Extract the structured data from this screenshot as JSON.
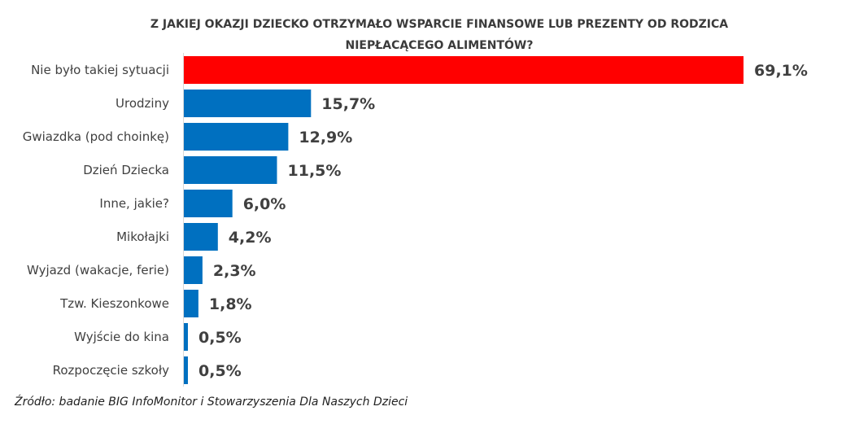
{
  "chart_data": {
    "type": "bar",
    "orientation": "horizontal",
    "title": "Z JAKIEJ OKAZJI DZIECKO OTRZYMAŁO WSPARCIE FINANSOWE LUB PREZENTY OD RODZICA NIEPŁACĄCEGO ALIMENTÓW?",
    "title_lines": [
      "Z JAKIEJ OKAZJI DZIECKO OTRZYMAŁO WSPARCIE FINANSOWE LUB PREZENTY OD RODZICA",
      "NIEPŁACĄCEGO ALIMENTÓW?"
    ],
    "categories": [
      "Nie było takiej sytuacji",
      "Urodziny",
      "Gwiazdka (pod choinkę)",
      "Dzień Dziecka",
      "Inne, jakie?",
      "Mikołajki",
      "Wyjazd (wakacje, ferie)",
      "Tzw. Kieszonkowe",
      "Wyjście do kina",
      "Rozpoczęcie szkoły"
    ],
    "values": [
      69.1,
      15.7,
      12.9,
      11.5,
      6.0,
      4.2,
      2.3,
      1.8,
      0.5,
      0.5
    ],
    "value_labels": [
      "69,1%",
      "15,7%",
      "12,9%",
      "11,5%",
      "6,0%",
      "4,2%",
      "2,3%",
      "1,8%",
      "0,5%",
      "0,5%"
    ],
    "colors": [
      "#ff0000",
      "#0070c0",
      "#0070c0",
      "#0070c0",
      "#0070c0",
      "#0070c0",
      "#0070c0",
      "#0070c0",
      "#0070c0",
      "#0070c0"
    ],
    "xlim": [
      0,
      69.1
    ],
    "grid": false,
    "legend": "none"
  },
  "source": "Źródło: badanie BIG InfoMonitor i Stowarzyszenia Dla Naszych Dzieci"
}
